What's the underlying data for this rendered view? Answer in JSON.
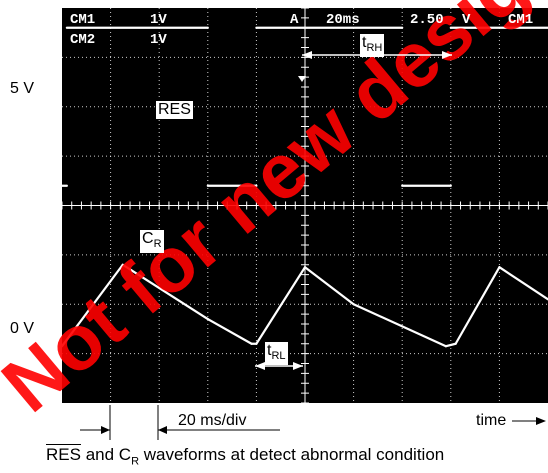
{
  "colors": {
    "screen": "#000000",
    "trace": "#ffffff",
    "grid": "#ffffff",
    "watermark": "#ff0000"
  },
  "readout": {
    "ch1": "CM1",
    "ch1_scale": "1V",
    "ch2": "CM2",
    "ch2_scale": "1V",
    "trigger_mode": "A",
    "timebase": "20ms",
    "trigger_level": "2.50",
    "trigger_unit": "V",
    "trigger_source": "CM1"
  },
  "labels": {
    "v5": "5 V",
    "v0": "0 V",
    "res": "RES",
    "cr_main": "C",
    "cr_sub": "R",
    "trh_main": "t",
    "trh_sub": "RH",
    "trl_main": "t",
    "trl_sub": "RL",
    "time_div": "20 ms/div",
    "time_axis": "time"
  },
  "caption": {
    "res": "RES",
    "mid": " and C",
    "sub": "R",
    "rest": " waveforms at detect abnormal condition"
  },
  "watermark": "Not for new design",
  "chart_data": {
    "type": "line",
    "title": "",
    "xlabel": "time",
    "x_unit": "ms",
    "y_unit": "V",
    "xlim": [
      -100,
      100
    ],
    "ylim": [
      -4,
      4
    ],
    "grid": true,
    "divisions": {
      "x": 10,
      "y": 8
    },
    "series": [
      {
        "name": "RES",
        "points": [
          [
            -100,
            0.4
          ],
          [
            -98,
            0.4
          ],
          [
            -98,
            3.6
          ],
          [
            -40,
            3.6
          ],
          [
            -40,
            0.4
          ],
          [
            -20,
            0.4
          ],
          [
            -20,
            3.6
          ],
          [
            0,
            3.6
          ],
          [
            40,
            3.6
          ],
          [
            40,
            0.4
          ],
          [
            60,
            0.4
          ],
          [
            60,
            3.6
          ],
          [
            100,
            3.6
          ]
        ],
        "gaps": [
          [
            -98,
            -92
          ],
          [
            -27,
            -20
          ]
        ]
      },
      {
        "name": "C_R",
        "points": [
          [
            -100,
            -2.85
          ],
          [
            -75,
            -1.2
          ],
          [
            -40,
            -2.3
          ],
          [
            -22,
            -2.8
          ],
          [
            -20,
            -2.8
          ],
          [
            0,
            -1.25
          ],
          [
            20,
            -2.0
          ],
          [
            58,
            -2.85
          ],
          [
            62,
            -2.8
          ],
          [
            80,
            -1.25
          ],
          [
            100,
            -1.9
          ]
        ]
      }
    ]
  }
}
